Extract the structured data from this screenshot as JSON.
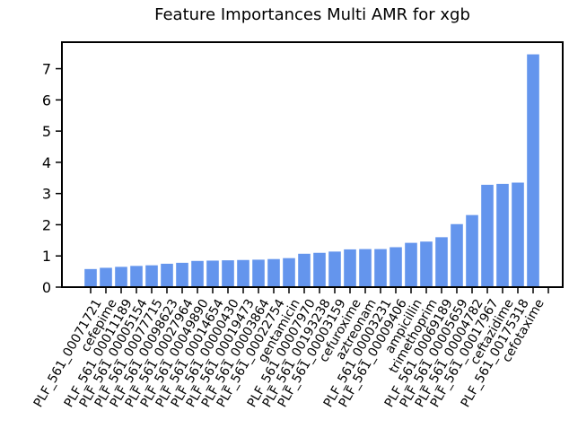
{
  "chart_data": {
    "type": "bar",
    "title": "Feature Importances Multi AMR for xgb",
    "xlabel": "",
    "ylabel": "",
    "ylim": [
      0,
      7.85
    ],
    "yticks": [
      0,
      1,
      2,
      3,
      4,
      5,
      6,
      7
    ],
    "grid": false,
    "bar_color": "#6495ED",
    "categories": [
      "PLF_561_00071721",
      "cefepime",
      "PLF_561_00011189",
      "PLF_561_00005154",
      "PLF_561_00077715",
      "PLF_561_00098623",
      "PLF_561_00027964",
      "PLF_561_00049890",
      "PLF_561_00014654",
      "PLF_561_00000430",
      "PLF_561_00019473",
      "PLF_561_00003864",
      "PLF_561_00022754",
      "gentamicin",
      "PLF_561_00007970",
      "PLF_561_00193238",
      "PLF_561_00003159",
      "cefuroxime",
      "aztreonam",
      "PLF_561_00003231",
      "PLF_561_00009406",
      "ampicillin",
      "trimethoprim",
      "PLF_561_00069189",
      "PLF_561_00005659",
      "PLF_561_00004782",
      "PLF_561_00017967",
      "ceftazidime",
      "PLF_561_00175318",
      "cefotaxime"
    ],
    "values": [
      0.58,
      0.62,
      0.65,
      0.68,
      0.7,
      0.75,
      0.78,
      0.84,
      0.85,
      0.86,
      0.87,
      0.88,
      0.9,
      0.93,
      1.07,
      1.1,
      1.14,
      1.21,
      1.22,
      1.22,
      1.28,
      1.42,
      1.46,
      1.6,
      2.02,
      2.31,
      3.28,
      3.31,
      3.35,
      7.46
    ]
  }
}
